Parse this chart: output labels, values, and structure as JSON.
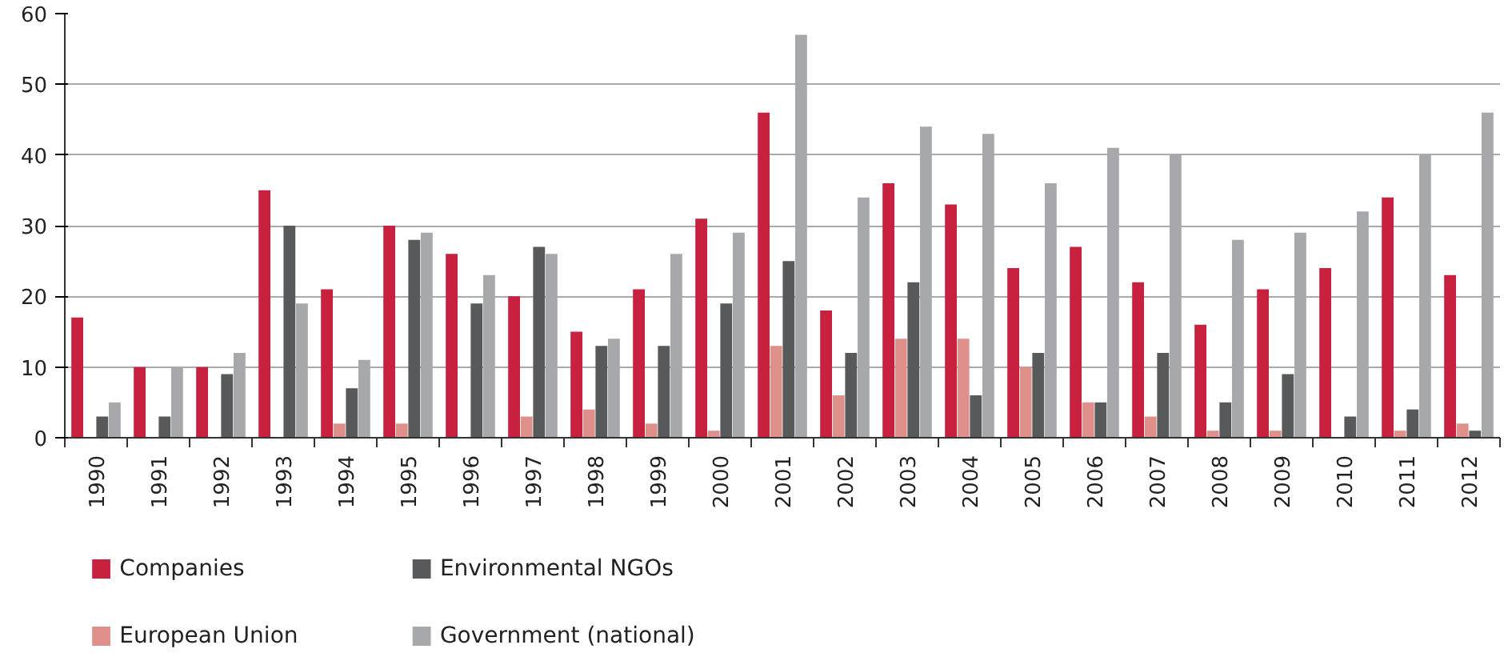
{
  "chart_data": {
    "type": "bar",
    "categories": [
      "1990",
      "1991",
      "1992",
      "1993",
      "1994",
      "1995",
      "1996",
      "1997",
      "1998",
      "1999",
      "2000",
      "2001",
      "2002",
      "2003",
      "2004",
      "2005",
      "2006",
      "2007",
      "2008",
      "2009",
      "2010",
      "2011",
      "2012"
    ],
    "series": [
      {
        "name": "Companies",
        "color": "#c8203f",
        "values": [
          17,
          10,
          10,
          35,
          21,
          30,
          26,
          20,
          15,
          21,
          31,
          46,
          18,
          36,
          33,
          24,
          27,
          22,
          16,
          21,
          24,
          34,
          23
        ]
      },
      {
        "name": "European Union",
        "color": "#e0908a",
        "values": [
          0,
          0,
          0,
          0,
          2,
          2,
          0,
          3,
          4,
          2,
          1,
          13,
          6,
          14,
          14,
          10,
          5,
          3,
          1,
          1,
          0,
          1,
          2
        ]
      },
      {
        "name": "Environmental NGOs",
        "color": "#58595b",
        "values": [
          3,
          3,
          9,
          30,
          7,
          28,
          19,
          27,
          13,
          13,
          19,
          25,
          12,
          22,
          6,
          12,
          5,
          12,
          5,
          9,
          3,
          4,
          1
        ]
      },
      {
        "name": "Government (national)",
        "color": "#a7a8ab",
        "values": [
          5,
          10,
          12,
          19,
          11,
          29,
          23,
          26,
          14,
          26,
          29,
          57,
          34,
          44,
          43,
          36,
          41,
          40,
          28,
          29,
          32,
          40,
          46
        ]
      }
    ],
    "ylim": [
      0,
      60
    ],
    "yticks": [
      0,
      10,
      20,
      30,
      40,
      50,
      60
    ],
    "grid": "y",
    "legend": "bottom"
  }
}
